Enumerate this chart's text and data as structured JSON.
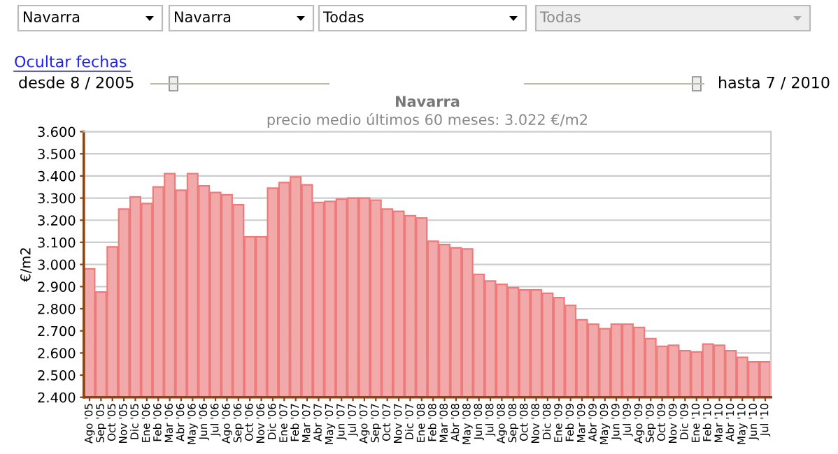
{
  "chart_data": {
    "type": "bar",
    "title": "Navarra",
    "subtitle": "precio medio últimos 60 meses: 3.022 €/m2",
    "ylabel": "€/m2",
    "annotations": [
      "Navarra",
      "Navarra",
      "Todas",
      "Todas",
      "Ocultar fechas",
      "desde 8 / 2005",
      "hasta 7 / 2010"
    ],
    "categories": [
      "Ago '05",
      "Sep '05",
      "Oct '05",
      "Nov '05",
      "Dic '05",
      "Ene '06",
      "Feb '06",
      "Mar '06",
      "Abr '06",
      "May '06",
      "Jun '06",
      "Jul '06",
      "Ago '06",
      "Sep '06",
      "Oct '06",
      "Nov '06",
      "Dic '06",
      "Ene '07",
      "Feb '07",
      "Mar '07",
      "Abr '07",
      "May '07",
      "Jun '07",
      "Jul '07",
      "Ago '07",
      "Sep '07",
      "Oct '07",
      "Nov '07",
      "Dic '07",
      "Ene '08",
      "Feb '08",
      "Mar '08",
      "Abr '08",
      "May '08",
      "Jun '08",
      "Jul '08",
      "Ago '08",
      "Sep '08",
      "Oct '08",
      "Nov '08",
      "Dic '08",
      "Ene '09",
      "Feb '09",
      "Mar '09",
      "Abr '09",
      "May '09",
      "Jun '09",
      "Jul '09",
      "Ago '09",
      "Sep '09",
      "Oct '09",
      "Nov '09",
      "Dic '09",
      "Ene '10",
      "Feb '10",
      "Mar '10",
      "Abr '10",
      "May '10",
      "Jun '10",
      "Jul '10"
    ],
    "values": [
      2.98,
      2.875,
      3.08,
      3.25,
      3.305,
      3.275,
      3.35,
      3.41,
      3.335,
      3.41,
      3.355,
      3.325,
      3.315,
      3.27,
      3.125,
      3.125,
      3.345,
      3.37,
      3.395,
      3.36,
      3.28,
      3.285,
      3.295,
      3.3,
      3.3,
      3.29,
      3.25,
      3.24,
      3.22,
      3.21,
      3.105,
      3.09,
      3.075,
      3.07,
      2.955,
      2.925,
      2.91,
      2.895,
      2.885,
      2.885,
      2.87,
      2.85,
      2.815,
      2.75,
      2.73,
      2.71,
      2.73,
      2.73,
      2.715,
      2.665,
      2.63,
      2.635,
      2.61,
      2.605,
      2.64,
      2.635,
      2.61,
      2.58,
      2.56,
      2.56
    ],
    "color": "#f2a9a9",
    "ylim": [
      2.4,
      3.6
    ],
    "yticks": [
      {
        "value": 2.4,
        "label": "2.400"
      },
      {
        "value": 2.5,
        "label": "2.500"
      },
      {
        "value": 2.6,
        "label": "2.600"
      },
      {
        "value": 2.7,
        "label": "2.700"
      },
      {
        "value": 2.8,
        "label": "2.800"
      },
      {
        "value": 2.9,
        "label": "2.900"
      },
      {
        "value": 3.0,
        "label": "3.000"
      },
      {
        "value": 3.1,
        "label": "3.100"
      },
      {
        "value": 3.2,
        "label": "3.200"
      },
      {
        "value": 3.3,
        "label": "3.300"
      },
      {
        "value": 3.4,
        "label": "3.400"
      },
      {
        "value": 3.5,
        "label": "3.500"
      },
      {
        "value": 3.6,
        "label": "3.600"
      }
    ],
    "grid": "y",
    "legend": false
  }
}
